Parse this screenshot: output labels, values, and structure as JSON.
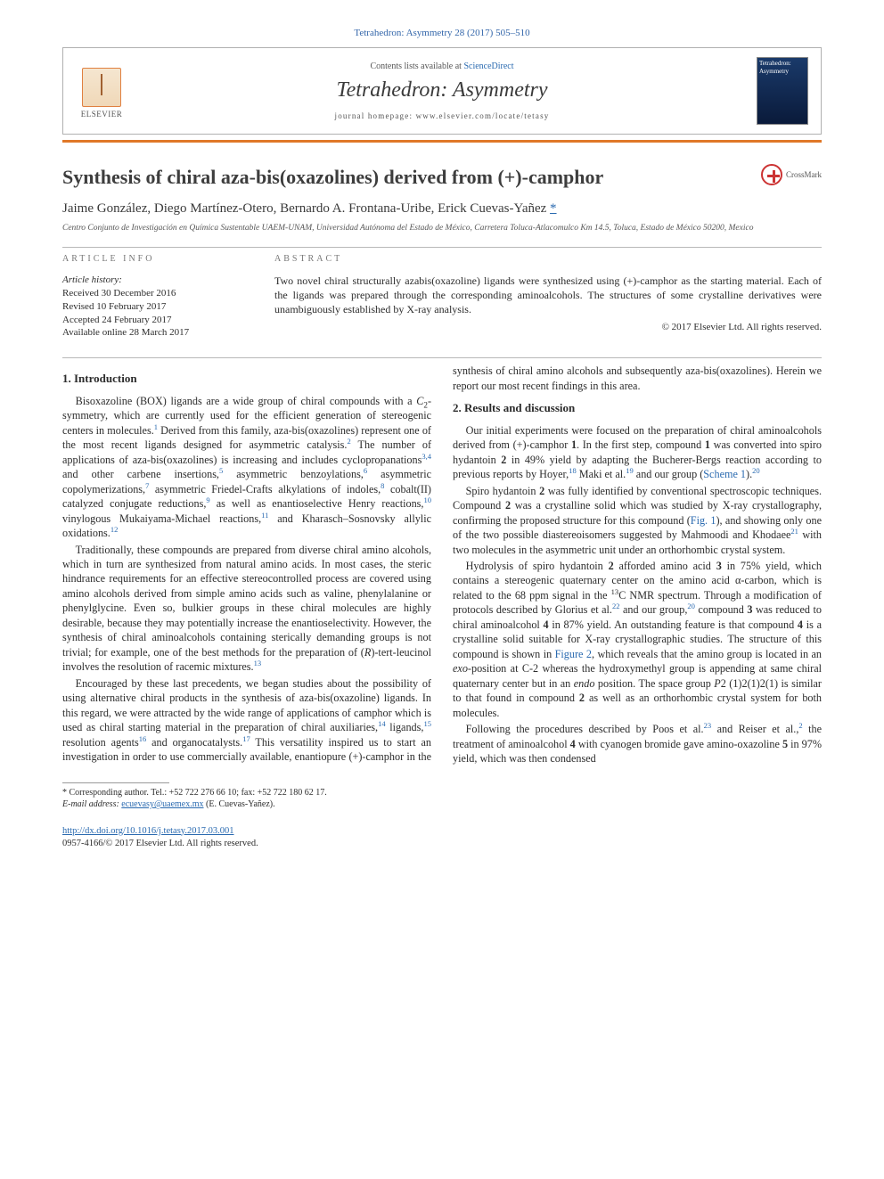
{
  "journal_ref": "Tetrahedron: Asymmetry 28 (2017) 505–510",
  "masthead": {
    "contents_prefix": "Contents lists available at ",
    "contents_link": "ScienceDirect",
    "journal_title_a": "Tetrahedron: ",
    "journal_title_b": "Asymmetry",
    "homepage_label": "journal homepage: www.elsevier.com/locate/tetasy",
    "publisher_name": "ELSEVIER",
    "cover_label": "Tetrahedron: Asymmetry"
  },
  "article_title": "Synthesis of chiral aza-bis(oxazolines) derived from (+)-camphor",
  "crossmark_label": "CrossMark",
  "authors_html": "Jaime González, Diego Martínez-Otero, Bernardo A. Frontana-Uribe, Erick Cuevas-Yañez",
  "corr_marker": "*",
  "affiliation": "Centro Conjunto de Investigación en Química Sustentable UAEM-UNAM, Universidad Autónoma del Estado de México, Carretera Toluca-Atlacomulco Km 14.5, Toluca, Estado de México 50200, Mexico",
  "info": {
    "header": "ARTICLE INFO",
    "history_label": "Article history:",
    "received": "Received 30 December 2016",
    "revised": "Revised 10 February 2017",
    "accepted": "Accepted 24 February 2017",
    "online": "Available online 28 March 2017"
  },
  "abstract": {
    "header": "ABSTRACT",
    "text": "Two novel chiral structurally azabis(oxazoline) ligands were synthesized using (+)-camphor as the starting material. Each of the ligands was prepared through the corresponding aminoalcohols. The structures of some crystalline derivatives were unambiguously established by X-ray analysis.",
    "copyright": "© 2017 Elsevier Ltd. All rights reserved."
  },
  "sections": {
    "s1_title": "1. Introduction",
    "s1_p1a": "Bisoxazoline (BOX) ligands are a wide group of chiral compounds with a ",
    "s1_p1b": "-symmetry, which are currently used for the efficient generation of stereogenic centers in molecules.",
    "s1_p1c": " Derived from this family, aza-bis(oxazolines) represent one of the most recent ligands designed for asymmetric catalysis.",
    "s1_p1d": " The number of applications of aza-bis(oxazolines) is increasing and includes cyclopropanations",
    "s1_p1e": " and other carbene insertions,",
    "s1_p1f": " asymmetric benzoylations,",
    "s1_p1g": " asymmetric copolymerizations,",
    "s1_p1h": " asymmetric Friedel-Crafts alkylations of indoles,",
    "s1_p1i": " cobalt(II) catalyzed conjugate reductions,",
    "s1_p1j": " as well as enantioselective Henry reactions,",
    "s1_p1k": " vinylogous Mukaiyama-Michael reactions,",
    "s1_p1l": " and Kharasch–Sosnovsky allylic oxidations.",
    "s1_p2": "Traditionally, these compounds are prepared from diverse chiral amino alcohols, which in turn are synthesized from natural amino acids. In most cases, the steric hindrance requirements for an effective stereocontrolled process are covered using amino alcohols derived from simple amino acids such as valine, phenylalanine or phenylglycine. Even so, bulkier groups in these chiral molecules are highly desirable, because they may potentially increase the enantioselectivity. However, the synthesis of chiral aminoalcohols containing sterically demanding groups is not trivial; for example, one of the best methods for the preparation of (",
    "s1_p2b": ")-tert-leucinol involves the resolution of racemic mixtures.",
    "s1_p3a": "Encouraged by these last precedents, we began studies about the possibility of using alternative chiral products in the synthesis of aza-bis(oxazoline) ligands. In this regard, we were attracted by the wide range of applications of camphor which is used as chiral starting material in the preparation of chiral auxiliaries,",
    "s1_p3b": " ligands,",
    "s1_p3c": " resolution agents",
    "s1_p3d": " and organocatalysts.",
    "s1_p3e": " This versatility inspired us to start an investigation in order to use commercially available, enantiopure (+)-camphor in the synthesis of chiral amino alcohols and subsequently aza-bis(oxazolines). Herein we report our most recent findings in this area.",
    "s2_title": "2. Results and discussion",
    "s2_p1a": "Our initial experiments were focused on the preparation of chiral aminoalcohols derived from (+)-camphor ",
    "s2_p1b": ". In the first step, compound ",
    "s2_p1c": " was converted into spiro hydantoin ",
    "s2_p1d": " in 49% yield by adapting the Bucherer-Bergs reaction according to previous reports by Hoyer,",
    "s2_p1e": " Maki et al.",
    "s2_p1f": " and our group (",
    "s2_p1g": ").",
    "s2_p2a": "Spiro hydantoin ",
    "s2_p2b": " was fully identified by conventional spectroscopic techniques. Compound ",
    "s2_p2c": " was a crystalline solid which was studied by X-ray crystallography, confirming the proposed structure for this compound (",
    "s2_p2d": "), and showing only one of the two possible diastereoisomers suggested by Mahmoodi and Khodaee",
    "s2_p2e": " with two molecules in the asymmetric unit under an orthorhombic crystal system.",
    "s2_p3a": "Hydrolysis of spiro hydantoin ",
    "s2_p3b": " afforded amino acid ",
    "s2_p3c": " in 75% yield, which contains a stereogenic quaternary center on the amino acid α-carbon, which is related to the 68 ppm signal in the ",
    "s2_p3d": "C NMR spectrum. Through a modification of protocols described by Glorius et al.",
    "s2_p3e": " and our group,",
    "s2_p3f": " compound ",
    "s2_p3g": " was reduced to chiral aminoalcohol ",
    "s2_p3h": " in 87% yield. An outstanding feature is that compound ",
    "s2_p3i": " is a crystalline solid suitable for X-ray crystallographic studies. The structure of this compound is shown in ",
    "s2_p3j": ", which reveals that the amino group is located in an ",
    "s2_p3k": "-position at C-2 whereas the hydroxymethyl group is appending at same chiral quaternary center but in an ",
    "s2_p3l": " position. The space group ",
    "s2_p3m": "2 (1)2(1)2(1) is similar to that found in compound ",
    "s2_p3n": " as well as an orthorhombic crystal system for both molecules.",
    "s2_p4a": "Following the procedures described by Poos et al.",
    "s2_p4b": " and Reiser et al.,",
    "s2_p4c": " the treatment of aminoalcohol ",
    "s2_p4d": " with cyanogen bromide gave amino-oxazoline ",
    "s2_p4e": " in 97% yield, which was then condensed"
  },
  "refs": {
    "r1": "1",
    "r2": "2",
    "r34": "3,4",
    "r5": "5",
    "r6": "6",
    "r7": "7",
    "r8": "8",
    "r9": "9",
    "r10": "10",
    "r11": "11",
    "r12": "12",
    "r13": "13",
    "r14": "14",
    "r15": "15",
    "r16": "16",
    "r17": "17",
    "r18": "18",
    "r19": "19",
    "r20": "20",
    "r21": "21",
    "r22": "22",
    "r23": "23"
  },
  "compounds": {
    "c1": "1",
    "c2": "2",
    "c3": "3",
    "c4": "4",
    "c5": "5"
  },
  "figrefs": {
    "scheme1": "Scheme 1",
    "fig1": "Fig. 1",
    "fig2": "Figure 2"
  },
  "chem": {
    "C2": "C",
    "R": "R",
    "exo": "exo",
    "endo": "endo",
    "P": "P",
    "C13": "13"
  },
  "footnote": {
    "marker": "*",
    "text_a": " Corresponding author. Tel.: +52 722 276 66 10; fax: +52 722 180 62 17.",
    "email_label": "E-mail address:",
    "email": "ecuevasy@uaemex.mx",
    "email_tail": " (E. Cuevas-Yañez)."
  },
  "doi": {
    "url": "http://dx.doi.org/10.1016/j.tetasy.2017.03.001",
    "issn_line": "0957-4166/© 2017 Elsevier Ltd. All rights reserved."
  },
  "colors": {
    "link": "#2a6ab0",
    "orange": "#e07828",
    "text": "#2c2c2c",
    "rule": "#b8b8b8"
  }
}
